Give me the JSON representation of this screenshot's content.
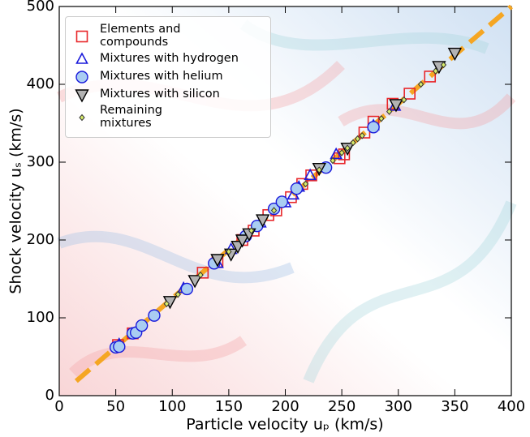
{
  "chart_data": {
    "type": "scatter",
    "x_label": "Particle velocity uₚ (km/s)",
    "y_label": "Shock velocity uₛ (km/s)",
    "xlim": [
      0,
      400
    ],
    "xticks": [
      0,
      50,
      100,
      150,
      200,
      250,
      300,
      350,
      400
    ],
    "ylim": [
      0,
      500
    ],
    "yticks": [
      0,
      100,
      200,
      300,
      400,
      500
    ],
    "legend": "upper left",
    "fit_line": {
      "color": "#f5a623",
      "x": [
        15,
        400
      ],
      "values": [
        18.75,
        500
      ]
    },
    "series": [
      {
        "name": "Elements and\ncompounds",
        "marker": "square",
        "color": "#e8262a",
        "x": [
          52,
          65,
          127,
          140,
          162,
          172,
          185,
          192,
          205,
          215,
          223,
          248,
          252,
          270,
          278,
          295,
          310,
          328
        ],
        "values": [
          65,
          80,
          158,
          172,
          200,
          212,
          232,
          238,
          255,
          272,
          283,
          305,
          310,
          338,
          352,
          375,
          388,
          410
        ]
      },
      {
        "name": "Mixtures with hydrogen",
        "marker": "triangle-up",
        "color": "#1a1adb",
        "x": [
          53,
          110,
          140,
          152,
          178,
          200,
          207,
          212,
          222,
          245,
          278,
          297
        ],
        "values": [
          66,
          138,
          170,
          188,
          222,
          248,
          258,
          268,
          283,
          310,
          347,
          372
        ]
      },
      {
        "name": "Mixtures with helium",
        "marker": "circle",
        "color": "#a9cdf2",
        "x": [
          50,
          53,
          65,
          68,
          73,
          84,
          113,
          137,
          165,
          175,
          190,
          197,
          210,
          236,
          278
        ],
        "values": [
          62,
          63,
          80,
          81,
          90,
          103,
          137,
          170,
          205,
          218,
          240,
          249,
          266,
          293,
          345
        ]
      },
      {
        "name": "Mixtures with silicon",
        "marker": "triangle-down",
        "color": "#b3b3b3",
        "x": [
          98,
          120,
          140,
          152,
          158,
          162,
          168,
          180,
          230,
          255,
          298,
          336,
          350
        ],
        "values": [
          121,
          148,
          175,
          182,
          192,
          200,
          208,
          226,
          292,
          318,
          374,
          423,
          440
        ]
      },
      {
        "name": "Remaining\nmixtures",
        "marker": "diamond",
        "color": "#d7ec6a",
        "x": [
          95,
          105,
          125,
          150,
          170,
          190,
          218,
          230,
          242,
          250,
          255,
          260,
          264,
          268,
          285,
          292,
          305,
          320,
          333,
          340
        ],
        "values": [
          118,
          130,
          155,
          185,
          212,
          238,
          272,
          290,
          302,
          312,
          318,
          325,
          330,
          334,
          356,
          365,
          380,
          400,
          417,
          425
        ]
      }
    ]
  }
}
